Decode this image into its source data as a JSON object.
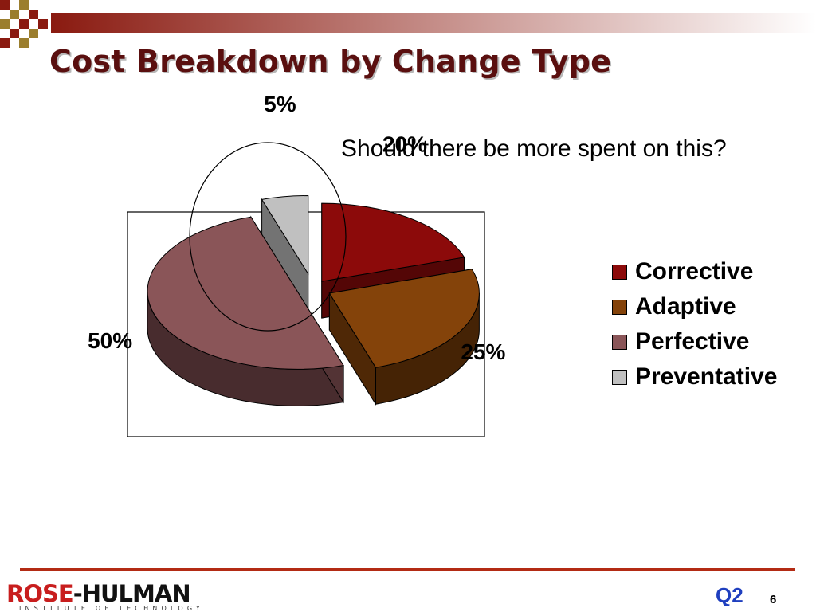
{
  "slide": {
    "title": "Cost Breakdown by Change Type",
    "annotation": "Should there be more spent on this?",
    "question_label": "Q2",
    "page_number": "6"
  },
  "logo": {
    "part1": "ROSE",
    "part2": "-HULMAN",
    "subtitle": "INSTITUTE OF TECHNOLOGY"
  },
  "theme": {
    "title_color": "#5a0f0f",
    "accent_rule": "#b32b14",
    "question_color": "#1f3fbf"
  },
  "chart_data": {
    "type": "pie",
    "style": "3d-exploded",
    "categories": [
      "Corrective",
      "Adaptive",
      "Perfective",
      "Preventative"
    ],
    "values": [
      20,
      25,
      50,
      5
    ],
    "data_labels": [
      "20%",
      "25%",
      "50%",
      "5%"
    ],
    "colors": [
      "#8c0a0a",
      "#84430a",
      "#8a5558",
      "#c0c0c0"
    ],
    "legend": "right",
    "highlighted_slice": "Preventative"
  }
}
